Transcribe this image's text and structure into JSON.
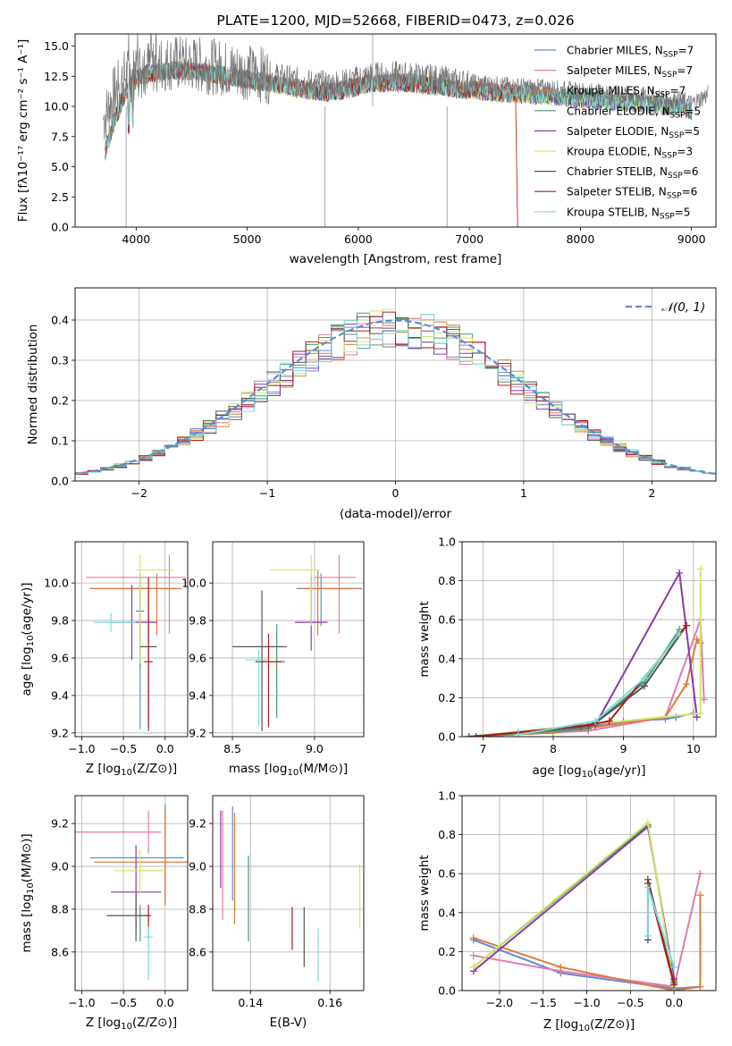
{
  "figure": {
    "title": "PLATE=1200, MJD=52668, FIBERID=0473, z=0.026"
  },
  "colors": {
    "Chabrier MILES": "#5b8bd9",
    "Salpeter MILES": "#e07ab0",
    "Kroupa MILES": "#e07b39",
    "Chabrier ELODIE": "#4a9a6a",
    "Salpeter ELODIE": "#8a3aa8",
    "Kroupa ELODIE": "#cfe868",
    "Chabrier STELIB": "#555555",
    "Salpeter STELIB": "#b01a1a",
    "Kroupa STELIB": "#7adcdc",
    "normal": "#5b8bd9"
  },
  "chart_data": [
    {
      "id": "spectrum",
      "type": "line",
      "title": "PLATE=1200, MJD=52668, FIBERID=0473, z=0.026",
      "xlabel": "wavelength [Angstrom, rest frame]",
      "ylabel": "Flux [f",
      "ylabel_rest": "10",
      "xlim": [
        3450,
        9220
      ],
      "ylim": [
        0,
        16
      ],
      "xticks": [
        4000,
        5000,
        6000,
        7000,
        8000,
        9000
      ],
      "yticks": [
        0.0,
        2.5,
        5.0,
        7.5,
        10.0,
        12.5,
        15.0
      ],
      "legend_position": "top-right",
      "legend": [
        {
          "name": "Chabrier MILES",
          "n": "7"
        },
        {
          "name": "Salpeter MILES",
          "n": "7"
        },
        {
          "name": "Kroupa MILES",
          "n": "7"
        },
        {
          "name": "Chabrier ELODIE",
          "n": "5"
        },
        {
          "name": "Salpeter ELODIE",
          "n": "5"
        },
        {
          "name": "Kroupa ELODIE",
          "n": "3"
        },
        {
          "name": "Chabrier STELIB",
          "n": "6"
        },
        {
          "name": "Salpeter STELIB",
          "n": "6"
        },
        {
          "name": "Kroupa STELIB",
          "n": "5"
        }
      ],
      "data_envelope": {
        "x": [
          3700,
          3800,
          3900,
          4000,
          4100,
          4300,
          4500,
          4700,
          4900,
          5100,
          5300,
          5500,
          5700,
          5900,
          6100,
          6300,
          6500,
          6700,
          6900,
          7100,
          7300,
          7500,
          7700,
          7900,
          8100,
          8300,
          8500,
          8700,
          8900,
          9000,
          9150
        ],
        "y": [
          8.8,
          11.0,
          12.5,
          12.8,
          13.3,
          13.6,
          13.5,
          13.3,
          13.0,
          12.7,
          12.4,
          12.0,
          11.8,
          12.0,
          12.5,
          12.6,
          12.5,
          12.3,
          12.0,
          11.9,
          11.7,
          11.6,
          11.5,
          11.3,
          11.2,
          11.0,
          10.9,
          10.7,
          10.5,
          10.2,
          11.0
        ]
      },
      "models_end_wavelength": {
        "Kroupa MILES": 7420,
        "Salpeter STELIB": 7420
      }
    },
    {
      "id": "residuals",
      "type": "histogram",
      "xlabel": "(data-model)/error",
      "ylabel": "Normed distribution",
      "xlim": [
        -2.5,
        2.5
      ],
      "ylim": [
        0,
        0.48
      ],
      "xticks": [
        -2,
        -1,
        0,
        1,
        2
      ],
      "yticks": [
        0.0,
        0.1,
        0.2,
        0.3,
        0.4
      ],
      "legend": "N(0,1)",
      "bin_width": 0.1
    },
    {
      "id": "age_vs_Z",
      "type": "errorbar",
      "xlabel": "Z [log10(Z/Z_sun)]",
      "ylabel": "age [log10(age/yr)]",
      "xlim": [
        -1.08,
        0.27
      ],
      "ylim": [
        9.18,
        10.22
      ],
      "xticks": [
        -1.0,
        -0.5,
        0.0
      ],
      "yticks": [
        9.2,
        9.4,
        9.6,
        9.8,
        10.0
      ],
      "points": [
        {
          "model": "Chabrier MILES",
          "x": -0.3,
          "y": 9.97,
          "xerr": [
            0.6,
            0.5
          ],
          "yerr": [
            0.75,
            0.08
          ]
        },
        {
          "model": "Salpeter MILES",
          "x": 0.05,
          "y": 10.03,
          "xerr": [
            1.0,
            0.2
          ],
          "yerr": [
            0.3,
            0.12
          ]
        },
        {
          "model": "Kroupa MILES",
          "x": -0.1,
          "y": 9.97,
          "xerr": [
            0.8,
            0.3
          ],
          "yerr": [
            0.25,
            0.08
          ]
        },
        {
          "model": "Chabrier ELODIE",
          "x": -0.3,
          "y": 9.85,
          "xerr": [
            0.05,
            0.05
          ],
          "yerr": [
            0.3,
            0.2
          ]
        },
        {
          "model": "Salpeter ELODIE",
          "x": -0.4,
          "y": 9.79,
          "xerr": [
            0.25,
            0.3
          ],
          "yerr": [
            0.2,
            0.2
          ]
        },
        {
          "model": "Kroupa ELODIE",
          "x": -0.3,
          "y": 10.07,
          "xerr": [
            0.05,
            0.4
          ],
          "yerr": [
            0.5,
            0.08
          ]
        },
        {
          "model": "Chabrier STELIB",
          "x": -0.2,
          "y": 9.66,
          "xerr": [
            0.1,
            0.1
          ],
          "yerr": [
            0.45,
            0.3
          ]
        },
        {
          "model": "Salpeter STELIB",
          "x": -0.2,
          "y": 9.58,
          "xerr": [
            0.05,
            0.05
          ],
          "yerr": [
            0.35,
            0.45
          ]
        },
        {
          "model": "Kroupa STELIB",
          "x": -0.65,
          "y": 9.79,
          "xerr": [
            0.2,
            0.3
          ],
          "yerr": [
            0.05,
            0.05
          ]
        }
      ]
    },
    {
      "id": "age_vs_mass",
      "type": "errorbar",
      "xlabel": "mass [log10(M/M_sun)]",
      "ylabel": "",
      "xlim": [
        8.38,
        9.3
      ],
      "ylim": [
        9.18,
        10.22
      ],
      "xticks": [
        8.5,
        9.0
      ],
      "yticks": [
        9.2,
        9.4,
        9.6,
        9.8,
        10.0
      ],
      "points": [
        {
          "model": "Chabrier MILES",
          "x": 9.04,
          "y": 9.97,
          "xerr": [
            0.15,
            0.25
          ],
          "yerr": [
            0.2,
            0.08
          ]
        },
        {
          "model": "Salpeter MILES",
          "x": 9.15,
          "y": 10.03,
          "xerr": [
            0.15,
            0.1
          ],
          "yerr": [
            0.3,
            0.12
          ]
        },
        {
          "model": "Kroupa MILES",
          "x": 9.02,
          "y": 9.97,
          "xerr": [
            0.1,
            0.25
          ],
          "yerr": [
            0.25,
            0.1
          ]
        },
        {
          "model": "Chabrier ELODIE",
          "x": 8.77,
          "y": 9.58,
          "xerr": [
            0.05,
            0.05
          ],
          "yerr": [
            0.3,
            0.2
          ]
        },
        {
          "model": "Salpeter ELODIE",
          "x": 8.98,
          "y": 9.79,
          "xerr": [
            0.1,
            0.1
          ],
          "yerr": [
            0.15,
            0.25
          ]
        },
        {
          "model": "Kroupa ELODIE",
          "x": 8.98,
          "y": 10.07,
          "xerr": [
            0.25,
            0.05
          ],
          "yerr": [
            0.3,
            0.08
          ]
        },
        {
          "model": "Chabrier STELIB",
          "x": 8.68,
          "y": 9.66,
          "xerr": [
            0.18,
            0.15
          ],
          "yerr": [
            0.45,
            0.3
          ]
        },
        {
          "model": "Salpeter STELIB",
          "x": 8.72,
          "y": 9.58,
          "xerr": [
            0.08,
            0.08
          ],
          "yerr": [
            0.35,
            0.15
          ]
        },
        {
          "model": "Kroupa STELIB",
          "x": 8.66,
          "y": 9.59,
          "xerr": [
            0.08,
            0.05
          ],
          "yerr": [
            0.35,
            0.05
          ]
        }
      ]
    },
    {
      "id": "weight_vs_age",
      "type": "line",
      "xlabel": "age [log10(age/yr)]",
      "ylabel": "mass weight",
      "xlim": [
        6.7,
        10.32
      ],
      "ylim": [
        0,
        1.0
      ],
      "xticks": [
        7,
        8,
        9,
        10
      ],
      "yticks": [
        0.0,
        0.2,
        0.4,
        0.6,
        0.8,
        1.0
      ],
      "series": [
        {
          "name": "Chabrier MILES",
          "x": [
            6.8,
            7.5,
            8.5,
            9.0,
            9.6,
            9.75,
            10.0
          ],
          "y": [
            0.0,
            0.02,
            0.05,
            0.08,
            0.09,
            0.1,
            0.12
          ]
        },
        {
          "name": "Salpeter MILES",
          "x": [
            6.8,
            8.5,
            9.6,
            10.1,
            10.15
          ],
          "y": [
            0.0,
            0.03,
            0.1,
            0.6,
            0.19
          ]
        },
        {
          "name": "Kroupa MILES",
          "x": [
            6.8,
            8.0,
            8.6,
            9.6,
            9.9,
            10.05,
            10.1
          ],
          "y": [
            0.0,
            0.02,
            0.05,
            0.1,
            0.27,
            0.5,
            0.48
          ]
        },
        {
          "name": "Chabrier ELODIE",
          "x": [
            6.8,
            8.5,
            9.3,
            9.8
          ],
          "y": [
            0.0,
            0.04,
            0.28,
            0.55
          ]
        },
        {
          "name": "Salpeter ELODIE",
          "x": [
            6.8,
            8.6,
            9.8,
            10.05
          ],
          "y": [
            0.0,
            0.06,
            0.84,
            0.1
          ]
        },
        {
          "name": "Kroupa ELODIE",
          "x": [
            6.8,
            10.1,
            10.1
          ],
          "y": [
            0.0,
            0.12,
            0.86
          ]
        },
        {
          "name": "Chabrier STELIB",
          "x": [
            6.8,
            8.4,
            8.6,
            9.3,
            9.9
          ],
          "y": [
            0.0,
            0.05,
            0.07,
            0.26,
            0.57
          ]
        },
        {
          "name": "Salpeter STELIB",
          "x": [
            6.9,
            8.5,
            8.8,
            9.9
          ],
          "y": [
            0.0,
            0.06,
            0.08,
            0.57
          ]
        },
        {
          "name": "Kroupa STELIB",
          "x": [
            7.5,
            8.6,
            9.3,
            9.8
          ],
          "y": [
            0.01,
            0.08,
            0.3,
            0.53
          ]
        }
      ]
    },
    {
      "id": "mass_vs_Z",
      "type": "errorbar",
      "xlabel": "Z [log10(Z/Z_sun)]",
      "ylabel": "mass [log10(M/M_sun)]",
      "xlim": [
        -1.08,
        0.27
      ],
      "ylim": [
        8.42,
        9.33
      ],
      "xticks": [
        -1.0,
        -0.5,
        0.0
      ],
      "yticks": [
        8.6,
        8.8,
        9.0,
        9.2
      ],
      "points": [
        {
          "model": "Chabrier MILES",
          "x": 0.0,
          "y": 9.04,
          "xerr": [
            0.9,
            0.22
          ],
          "yerr": [
            0.22,
            0.25
          ]
        },
        {
          "model": "Salpeter MILES",
          "x": -0.2,
          "y": 9.16,
          "xerr": [
            0.95,
            0.15
          ],
          "yerr": [
            0.1,
            0.1
          ]
        },
        {
          "model": "Kroupa MILES",
          "x": 0.0,
          "y": 9.02,
          "xerr": [
            0.85,
            0.3
          ],
          "yerr": [
            0.2,
            0.25
          ]
        },
        {
          "model": "Chabrier ELODIE",
          "x": -0.3,
          "y": 8.77,
          "xerr": [
            0.05,
            0.05
          ],
          "yerr": [
            0.12,
            0.05
          ]
        },
        {
          "model": "Salpeter ELODIE",
          "x": -0.35,
          "y": 8.88,
          "xerr": [
            0.3,
            0.3
          ],
          "yerr": [
            0.18,
            0.22
          ]
        },
        {
          "model": "Kroupa ELODIE",
          "x": -0.3,
          "y": 8.98,
          "xerr": [
            0.3,
            0.3
          ],
          "yerr": [
            0.1,
            0.1
          ]
        },
        {
          "model": "Chabrier STELIB",
          "x": -0.35,
          "y": 8.77,
          "xerr": [
            0.35,
            0.15
          ],
          "yerr": [
            0.12,
            0.1
          ]
        },
        {
          "model": "Salpeter STELIB",
          "x": -0.2,
          "y": 8.77,
          "xerr": [
            0.03,
            0.03
          ],
          "yerr": [
            0.1,
            0.05
          ]
        },
        {
          "model": "Kroupa STELIB",
          "x": -0.2,
          "y": 8.67,
          "xerr": [
            0.05,
            0.05
          ],
          "yerr": [
            0.2,
            0.05
          ]
        }
      ]
    },
    {
      "id": "mass_vs_EBV",
      "type": "errorbar",
      "xlabel": "E(B-V)",
      "ylabel": "",
      "xlim": [
        0.1305,
        0.1685
      ],
      "ylim": [
        8.42,
        9.33
      ],
      "xticks": [
        0.14,
        0.16
      ],
      "yticks": [
        8.6,
        8.8,
        9.0,
        9.2
      ],
      "points": [
        {
          "model": "Salpeter ELODIE",
          "x": 0.1325,
          "y": 9.1,
          "xerr": [
            0,
            0
          ],
          "yerr": [
            0.2,
            0.16
          ]
        },
        {
          "model": "Salpeter MILES",
          "x": 0.133,
          "y": 9.0,
          "xerr": [
            0,
            0
          ],
          "yerr": [
            0.25,
            0.26
          ]
        },
        {
          "model": "Chabrier MILES",
          "x": 0.1355,
          "y": 9.04,
          "xerr": [
            0,
            0
          ],
          "yerr": [
            0.2,
            0.24
          ]
        },
        {
          "model": "Kroupa MILES",
          "x": 0.136,
          "y": 9.0,
          "xerr": [
            0,
            0
          ],
          "yerr": [
            0.27,
            0.25
          ]
        },
        {
          "model": "Chabrier ELODIE",
          "x": 0.1395,
          "y": 8.85,
          "xerr": [
            0,
            0
          ],
          "yerr": [
            0.2,
            0.2
          ]
        },
        {
          "model": "Salpeter STELIB",
          "x": 0.1505,
          "y": 8.7,
          "xerr": [
            0,
            0
          ],
          "yerr": [
            0.09,
            0.11
          ]
        },
        {
          "model": "Chabrier STELIB",
          "x": 0.1535,
          "y": 8.72,
          "xerr": [
            0,
            0
          ],
          "yerr": [
            0.19,
            0.09
          ]
        },
        {
          "model": "Kroupa STELIB",
          "x": 0.157,
          "y": 8.6,
          "xerr": [
            0,
            0
          ],
          "yerr": [
            0.14,
            0.11
          ]
        },
        {
          "model": "Kroupa ELODIE",
          "x": 0.1675,
          "y": 8.86,
          "xerr": [
            0,
            0
          ],
          "yerr": [
            0.15,
            0.15
          ]
        }
      ]
    },
    {
      "id": "weight_vs_Z",
      "type": "line",
      "xlabel": "Z [log10(Z/Z_sun)]",
      "ylabel": "mass weight",
      "xlim": [
        -2.43,
        0.48
      ],
      "ylim": [
        0,
        1.0
      ],
      "xticks": [
        -2.0,
        -1.5,
        -1.0,
        -0.5,
        0.0
      ],
      "yticks": [
        0.0,
        0.2,
        0.4,
        0.6,
        0.8,
        1.0
      ],
      "series": [
        {
          "name": "Chabrier MILES",
          "x": [
            -2.3,
            -1.3,
            0.0,
            0.3
          ],
          "y": [
            0.26,
            0.09,
            0.01,
            0.02
          ]
        },
        {
          "name": "Salpeter MILES",
          "x": [
            -2.3,
            -1.3,
            0.0,
            0.3
          ],
          "y": [
            0.18,
            0.1,
            0.02,
            0.6
          ]
        },
        {
          "name": "Kroupa MILES",
          "x": [
            -2.3,
            -1.3,
            0.0,
            0.3,
            0.3
          ],
          "y": [
            0.27,
            0.12,
            0.0,
            0.02,
            0.49
          ]
        },
        {
          "name": "Chabrier ELODIE",
          "x": [
            -2.3,
            -0.3,
            0.0
          ],
          "y": [
            0.12,
            0.85,
            0.05
          ]
        },
        {
          "name": "Salpeter ELODIE",
          "x": [
            -2.3,
            -0.3,
            0.0
          ],
          "y": [
            0.1,
            0.84,
            0.06
          ]
        },
        {
          "name": "Kroupa ELODIE",
          "x": [
            -2.3,
            -0.3,
            0.0
          ],
          "y": [
            0.12,
            0.86,
            0.02
          ]
        },
        {
          "name": "Chabrier STELIB",
          "x": [
            -0.3,
            -0.3,
            0.0
          ],
          "y": [
            0.26,
            0.57,
            0.04
          ]
        },
        {
          "name": "Salpeter STELIB",
          "x": [
            -0.3,
            0.0
          ],
          "y": [
            0.55,
            0.03
          ]
        },
        {
          "name": "Kroupa STELIB",
          "x": [
            -0.3,
            -0.3,
            0.0
          ],
          "y": [
            0.28,
            0.53,
            0.12
          ]
        }
      ]
    }
  ]
}
